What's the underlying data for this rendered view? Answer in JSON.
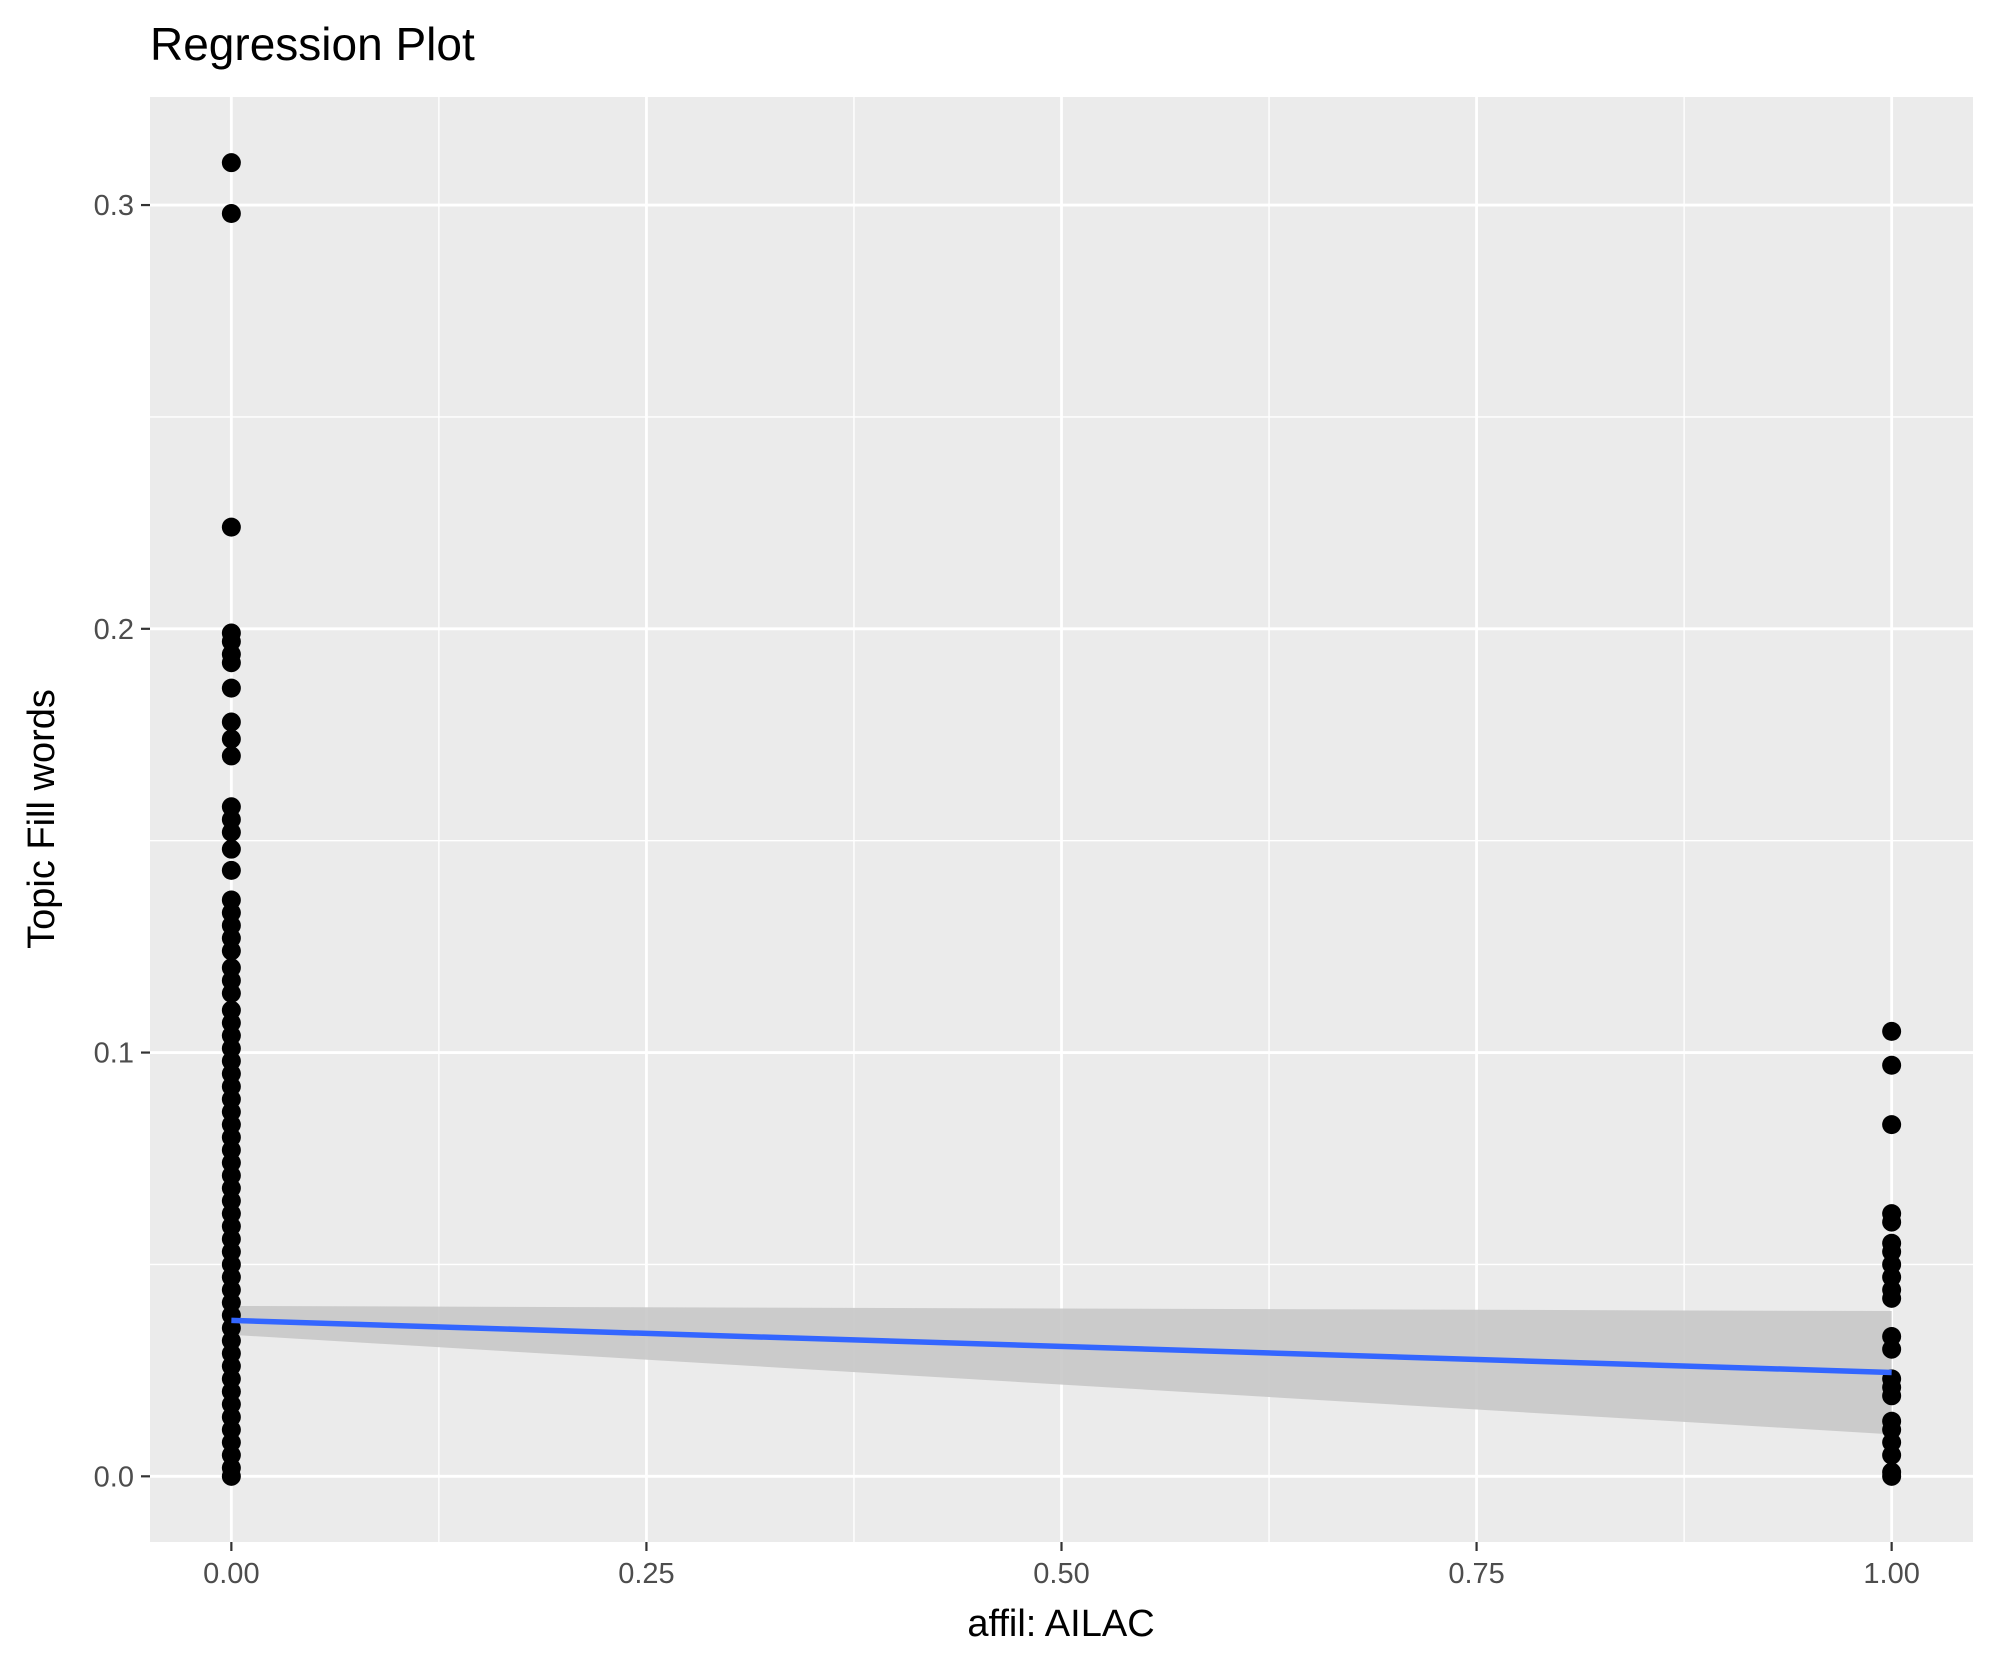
{
  "chart_data": {
    "type": "scatter",
    "title": "Regression Plot",
    "xlabel": "affil: AILAC",
    "ylabel": "Topic Fill words",
    "xlim": [
      -0.049,
      1.049
    ],
    "ylim": [
      -0.0155,
      0.3255
    ],
    "x_ticks": [
      0.0,
      0.25,
      0.5,
      0.75,
      1.0
    ],
    "x_tick_labels": [
      "0.00",
      "0.25",
      "0.50",
      "0.75",
      "1.00"
    ],
    "y_ticks": [
      0.0,
      0.1,
      0.2,
      0.3
    ],
    "y_tick_labels": [
      "0.0",
      "0.1",
      "0.2",
      "0.3"
    ],
    "grid": true,
    "legend": "none",
    "colors": {
      "panel": "#ebebeb",
      "grid": "#ffffff",
      "points": "#000000",
      "fit_line": "#3366ff",
      "confidence_band": "#c8c8c8"
    },
    "points": {
      "x0": [
        0.31,
        0.298,
        0.224,
        0.199,
        0.197,
        0.194,
        0.192,
        0.186,
        0.178,
        0.174,
        0.17,
        0.158,
        0.155,
        0.152,
        0.148,
        0.143,
        0.136,
        0.133,
        0.13,
        0.127,
        0.124,
        0.12,
        0.117,
        0.114,
        0.11,
        0.107,
        0.104,
        0.101,
        0.098,
        0.095,
        0.092,
        0.089,
        0.086,
        0.083,
        0.08,
        0.077,
        0.074,
        0.071,
        0.068,
        0.065,
        0.062,
        0.059,
        0.056,
        0.053,
        0.05,
        0.047,
        0.044,
        0.041,
        0.038,
        0.035,
        0.032,
        0.029,
        0.026,
        0.023,
        0.02,
        0.017,
        0.014,
        0.011,
        0.008,
        0.005,
        0.002,
        0.0
      ],
      "x1": [
        0.105,
        0.097,
        0.083,
        0.062,
        0.06,
        0.055,
        0.053,
        0.05,
        0.047,
        0.044,
        0.042,
        0.033,
        0.03,
        0.023,
        0.021,
        0.019,
        0.013,
        0.011,
        0.008,
        0.005,
        0.001,
        0.0
      ]
    },
    "fit": {
      "x": [
        0,
        1
      ],
      "y": [
        0.0368,
        0.0245
      ],
      "ci_lower": [
        0.0334,
        0.0099
      ],
      "ci_upper": [
        0.0402,
        0.039
      ]
    }
  }
}
